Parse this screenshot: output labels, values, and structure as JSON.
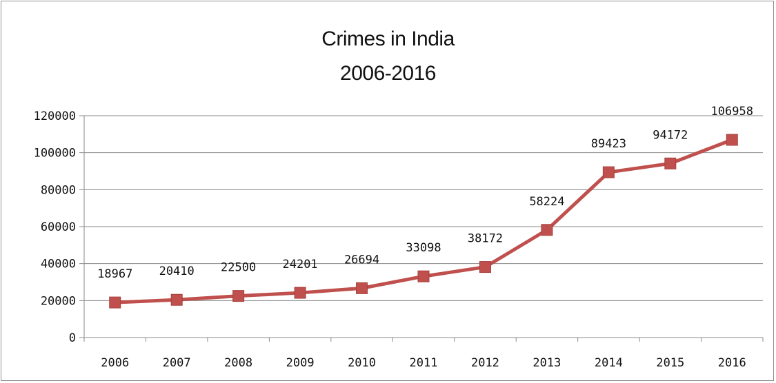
{
  "chart_data": {
    "type": "line",
    "title": "Crimes in India",
    "subtitle": "2006-2016",
    "xlabel": "",
    "ylabel": "",
    "categories": [
      "2006",
      "2007",
      "2008",
      "2009",
      "2010",
      "2011",
      "2012",
      "2013",
      "2014",
      "2015",
      "2016"
    ],
    "series": [
      {
        "values": [
          18967,
          20410,
          22500,
          24201,
          26694,
          33098,
          38172,
          58224,
          89423,
          94172,
          106958
        ],
        "color": "#c0504d",
        "marker": "square"
      }
    ],
    "y_ticks": [
      "0",
      "20000",
      "40000",
      "60000",
      "80000",
      "100000",
      "120000"
    ],
    "ylim": [
      0,
      120000
    ],
    "grid": true,
    "legend": "none",
    "data_labels": true
  }
}
